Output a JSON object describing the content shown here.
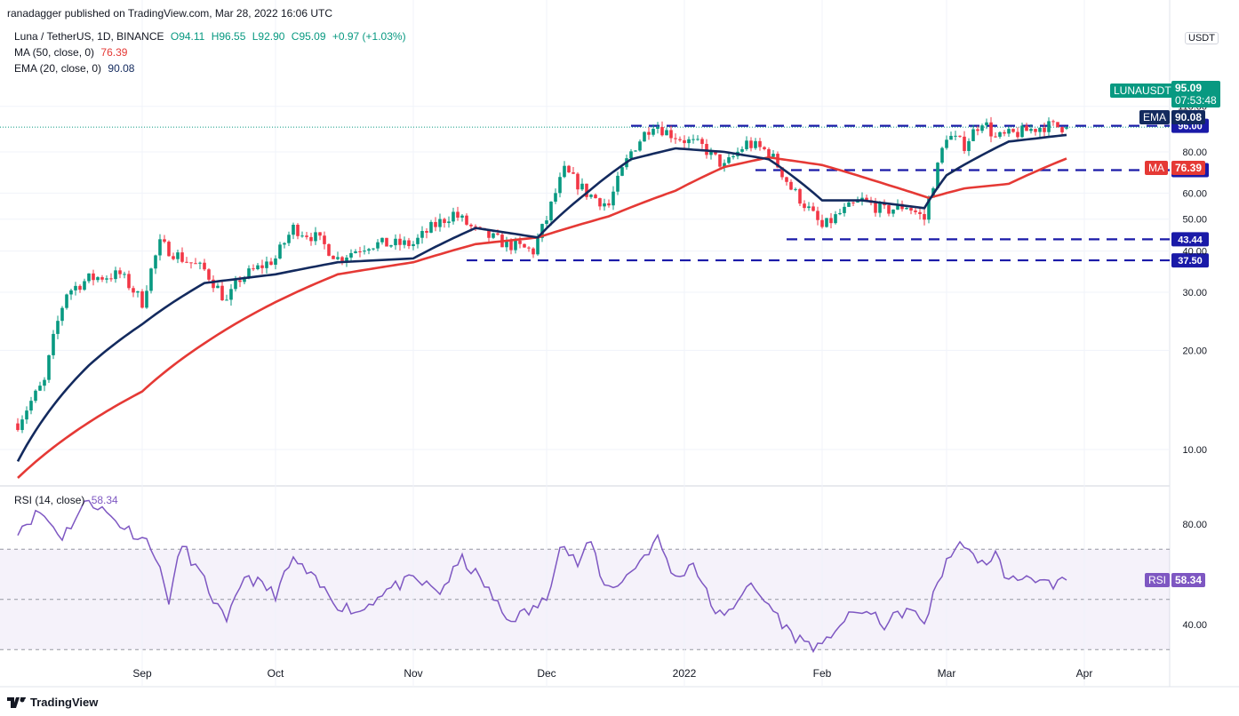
{
  "publisher": "ranadagger published on TradingView.com, Mar 28, 2022 16:06 UTC",
  "legend": {
    "symbol": "Luna / TetherUS, 1D, BINANCE",
    "open": "O94.11",
    "high": "H96.55",
    "low": "L92.90",
    "close": "C95.09",
    "change": "+0.97 (+1.03%)",
    "ma_label": "MA (50, close, 0)",
    "ma_value": "76.39",
    "ema_label": "EMA (20, close, 0)",
    "ema_value": "90.08",
    "rsi_label": "RSI (14, close)",
    "rsi_value": "58.34"
  },
  "currency": "USDT",
  "tags": {
    "ticker": "LUNAUSDT",
    "price": "95.09",
    "countdown": "07:53:48",
    "ema": "EMA",
    "ema_val": "90.08",
    "ma": "MA",
    "ma_val": "76.39",
    "rsi": "RSI",
    "rsi_val": "58.34"
  },
  "footer": "TradingView",
  "colors": {
    "up": "#089981",
    "down": "#f23645",
    "ema": "#132a5e",
    "ma": "#e53935",
    "level": "#1a1aa8",
    "rsi": "#7e57c2"
  },
  "chart_data": [
    {
      "type": "candlestick",
      "title": "Luna / TetherUS, 1D, BINANCE",
      "y_ticks": [
        "10.00",
        "20.00",
        "30.00",
        "40.00",
        "50.00",
        "60.00",
        "80.00",
        "110.00"
      ],
      "x_ticks": [
        "Sep",
        "Oct",
        "Nov",
        "Dec",
        "2022",
        "Feb",
        "Mar",
        "Apr"
      ],
      "x_tick_dates": [
        "2021-09-01",
        "2021-10-01",
        "2021-11-01",
        "2021-12-01",
        "2022-01-01",
        "2022-02-01",
        "2022-03-01",
        "2022-04-01"
      ],
      "y_range": [
        5,
        112
      ],
      "y_scale": "log",
      "levels": [
        {
          "value": 96.0,
          "from": "2021-12-20",
          "label": "96.00"
        },
        {
          "value": 70.44,
          "from": "2022-01-17",
          "label": "70.44"
        },
        {
          "value": 43.44,
          "from": "2022-01-24",
          "label": "43.44"
        },
        {
          "value": 37.5,
          "from": "2021-11-13",
          "label": "37.50"
        }
      ],
      "ema20_keypoints": [
        [
          "2021-08-04",
          9.2
        ],
        [
          "2021-08-20",
          18
        ],
        [
          "2021-09-01",
          24
        ],
        [
          "2021-09-15",
          32
        ],
        [
          "2021-10-01",
          34
        ],
        [
          "2021-10-15",
          37
        ],
        [
          "2021-11-01",
          38
        ],
        [
          "2021-11-15",
          47
        ],
        [
          "2021-11-29",
          44
        ],
        [
          "2021-12-10",
          60
        ],
        [
          "2021-12-20",
          76
        ],
        [
          "2021-12-30",
          82
        ],
        [
          "2022-01-10",
          80
        ],
        [
          "2022-01-20",
          76
        ],
        [
          "2022-02-01",
          57
        ],
        [
          "2022-02-10",
          57
        ],
        [
          "2022-02-24",
          54
        ],
        [
          "2022-03-01",
          68
        ],
        [
          "2022-03-15",
          86
        ],
        [
          "2022-03-28",
          90.08
        ]
      ],
      "ma50_keypoints": [
        [
          "2021-08-04",
          8.2
        ],
        [
          "2021-09-01",
          15
        ],
        [
          "2021-09-15",
          21
        ],
        [
          "2021-10-01",
          28
        ],
        [
          "2021-10-15",
          34
        ],
        [
          "2021-11-01",
          37
        ],
        [
          "2021-11-15",
          42
        ],
        [
          "2021-11-29",
          44
        ],
        [
          "2021-12-15",
          51
        ],
        [
          "2021-12-30",
          61
        ],
        [
          "2022-01-10",
          72
        ],
        [
          "2022-01-20",
          77
        ],
        [
          "2022-02-01",
          73
        ],
        [
          "2022-02-15",
          64
        ],
        [
          "2022-02-25",
          58
        ],
        [
          "2022-03-05",
          62
        ],
        [
          "2022-03-15",
          64
        ],
        [
          "2022-03-28",
          76.39
        ]
      ],
      "price_keypoints": [
        [
          "2021-08-04",
          12
        ],
        [
          "2021-08-10",
          16
        ],
        [
          "2021-08-15",
          30
        ],
        [
          "2021-08-20",
          33
        ],
        [
          "2021-08-27",
          34
        ],
        [
          "2021-09-01",
          28
        ],
        [
          "2021-09-05",
          42
        ],
        [
          "2021-09-10",
          38
        ],
        [
          "2021-09-15",
          35
        ],
        [
          "2021-09-20",
          28
        ],
        [
          "2021-09-23",
          33
        ],
        [
          "2021-10-01",
          38
        ],
        [
          "2021-10-05",
          47
        ],
        [
          "2021-10-10",
          44
        ],
        [
          "2021-10-15",
          38
        ],
        [
          "2021-10-22",
          42
        ],
        [
          "2021-11-01",
          42
        ],
        [
          "2021-11-05",
          47
        ],
        [
          "2021-11-10",
          52
        ],
        [
          "2021-11-15",
          46
        ],
        [
          "2021-11-22",
          42
        ],
        [
          "2021-11-28",
          40
        ],
        [
          "2021-12-01",
          50
        ],
        [
          "2021-12-05",
          70
        ],
        [
          "2021-12-10",
          60
        ],
        [
          "2021-12-15",
          55
        ],
        [
          "2021-12-20",
          80
        ],
        [
          "2021-12-25",
          98
        ],
        [
          "2021-12-28",
          92
        ],
        [
          "2022-01-01",
          87
        ],
        [
          "2022-01-05",
          83
        ],
        [
          "2022-01-10",
          72
        ],
        [
          "2022-01-15",
          85
        ],
        [
          "2022-01-20",
          80
        ],
        [
          "2022-01-25",
          62
        ],
        [
          "2022-02-01",
          47
        ],
        [
          "2022-02-05",
          52
        ],
        [
          "2022-02-10",
          57
        ],
        [
          "2022-02-15",
          53
        ],
        [
          "2022-02-20",
          55
        ],
        [
          "2022-02-24",
          50
        ],
        [
          "2022-02-27",
          72
        ],
        [
          "2022-03-01",
          90
        ],
        [
          "2022-03-05",
          84
        ],
        [
          "2022-03-09",
          100
        ],
        [
          "2022-03-12",
          88
        ],
        [
          "2022-03-18",
          92
        ],
        [
          "2022-03-23",
          96
        ],
        [
          "2022-03-28",
          95.09
        ]
      ]
    },
    {
      "type": "line",
      "title": "RSI (14, close)",
      "y_ticks": [
        "40.00",
        "80.00"
      ],
      "y_range": [
        25,
        95
      ],
      "bands": [
        30,
        50,
        70
      ],
      "keypoints": [
        [
          "2021-08-04",
          78
        ],
        [
          "2021-08-09",
          85
        ],
        [
          "2021-08-14",
          75
        ],
        [
          "2021-08-20",
          90
        ],
        [
          "2021-08-27",
          80
        ],
        [
          "2021-09-03",
          72
        ],
        [
          "2021-09-07",
          50
        ],
        [
          "2021-09-10",
          72
        ],
        [
          "2021-09-15",
          57
        ],
        [
          "2021-09-20",
          40
        ],
        [
          "2021-09-24",
          60
        ],
        [
          "2021-10-01",
          52
        ],
        [
          "2021-10-05",
          66
        ],
        [
          "2021-10-10",
          57
        ],
        [
          "2021-10-15",
          48
        ],
        [
          "2021-10-20",
          45
        ],
        [
          "2021-10-25",
          53
        ],
        [
          "2021-11-01",
          58
        ],
        [
          "2021-11-07",
          53
        ],
        [
          "2021-11-12",
          66
        ],
        [
          "2021-11-17",
          56
        ],
        [
          "2021-11-22",
          42
        ],
        [
          "2021-11-27",
          45
        ],
        [
          "2021-12-01",
          50
        ],
        [
          "2021-12-04",
          73
        ],
        [
          "2021-12-08",
          64
        ],
        [
          "2021-12-11",
          73
        ],
        [
          "2021-12-14",
          55
        ],
        [
          "2021-12-18",
          57
        ],
        [
          "2021-12-26",
          74
        ],
        [
          "2021-12-30",
          58
        ],
        [
          "2022-01-03",
          65
        ],
        [
          "2022-01-07",
          48
        ],
        [
          "2022-01-10",
          42
        ],
        [
          "2022-01-15",
          56
        ],
        [
          "2022-01-20",
          48
        ],
        [
          "2022-01-25",
          36
        ],
        [
          "2022-02-01",
          30
        ],
        [
          "2022-02-04",
          39
        ],
        [
          "2022-02-10",
          46
        ],
        [
          "2022-02-15",
          40
        ],
        [
          "2022-02-20",
          46
        ],
        [
          "2022-02-24",
          41
        ],
        [
          "2022-03-01",
          66
        ],
        [
          "2022-03-05",
          73
        ],
        [
          "2022-03-08",
          63
        ],
        [
          "2022-03-12",
          68
        ],
        [
          "2022-03-15",
          57
        ],
        [
          "2022-03-20",
          60
        ],
        [
          "2022-03-25",
          54
        ],
        [
          "2022-03-28",
          58.34
        ]
      ]
    }
  ]
}
